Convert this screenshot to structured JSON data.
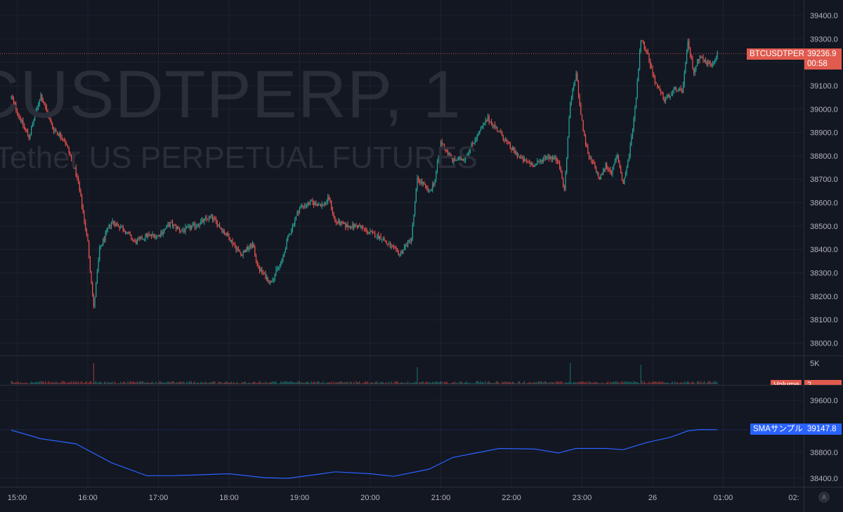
{
  "watermark": {
    "symbol": "CUSDTPERP, 1",
    "description": "Tether US PERPETUAL FUTURES"
  },
  "price_axis": {
    "labels": [
      "39400.0",
      "39300.0",
      "39200.0",
      "39100.0",
      "39000.0",
      "38900.0",
      "38800.0",
      "38700.0",
      "38600.0",
      "38500.0",
      "38400.0",
      "38300.0",
      "38200.0",
      "38100.0",
      "38000.0"
    ]
  },
  "volume_axis": {
    "label": "5K"
  },
  "sma_axis": {
    "labels": [
      "39600.0",
      "38800.0",
      "38400.0"
    ]
  },
  "time_axis": {
    "labels": [
      "15:00",
      "16:00",
      "17:00",
      "18:00",
      "19:00",
      "20:00",
      "21:00",
      "22:00",
      "23:00",
      "26",
      "01:00",
      "02:"
    ]
  },
  "last_price": {
    "symbol_tag": "BTCUSDTPERP",
    "value": "39236.9",
    "countdown": "00:58",
    "color": "#e05a4e"
  },
  "volume_tag": {
    "label": "Volume",
    "value": "2"
  },
  "sma_tag": {
    "label": "SMAサンプル",
    "value": "39147.8",
    "color": "#2962ff"
  },
  "auto_button": {
    "label": "A"
  },
  "colors": {
    "up": "#26a69a",
    "down": "#ef5350",
    "sma_line": "#2962ff",
    "background": "#131722",
    "grid": "#1e222d"
  },
  "chart_data": {
    "type": "candlestick",
    "symbol": "BTCUSDTPERP",
    "interval": "1",
    "price_range": [
      37950,
      39430
    ],
    "sma_range": [
      38350,
      39700
    ],
    "price_path": [
      [
        "14:55",
        39050
      ],
      [
        "15:05",
        38930
      ],
      [
        "15:10",
        38880
      ],
      [
        "15:20",
        39060
      ],
      [
        "15:30",
        38920
      ],
      [
        "15:40",
        38870
      ],
      [
        "15:48",
        38760
      ],
      [
        "15:52",
        38680
      ],
      [
        "16:00",
        38430
      ],
      [
        "16:05",
        38150
      ],
      [
        "16:10",
        38400
      ],
      [
        "16:20",
        38520
      ],
      [
        "16:30",
        38490
      ],
      [
        "16:40",
        38430
      ],
      [
        "16:50",
        38460
      ],
      [
        "17:00",
        38460
      ],
      [
        "17:10",
        38510
      ],
      [
        "17:20",
        38480
      ],
      [
        "17:30",
        38500
      ],
      [
        "17:45",
        38540
      ],
      [
        "17:55",
        38480
      ],
      [
        "18:00",
        38450
      ],
      [
        "18:10",
        38380
      ],
      [
        "18:20",
        38420
      ],
      [
        "18:25",
        38320
      ],
      [
        "18:35",
        38260
      ],
      [
        "18:45",
        38350
      ],
      [
        "18:50",
        38450
      ],
      [
        "19:00",
        38580
      ],
      [
        "19:10",
        38600
      ],
      [
        "19:20",
        38590
      ],
      [
        "19:25",
        38620
      ],
      [
        "19:30",
        38520
      ],
      [
        "19:40",
        38500
      ],
      [
        "19:50",
        38500
      ],
      [
        "20:00",
        38470
      ],
      [
        "20:10",
        38450
      ],
      [
        "20:15",
        38420
      ],
      [
        "20:25",
        38380
      ],
      [
        "20:35",
        38450
      ],
      [
        "20:40",
        38700
      ],
      [
        "20:45",
        38680
      ],
      [
        "20:50",
        38640
      ],
      [
        "20:55",
        38700
      ],
      [
        "21:00",
        38860
      ],
      [
        "21:10",
        38780
      ],
      [
        "21:20",
        38790
      ],
      [
        "21:30",
        38880
      ],
      [
        "21:40",
        38960
      ],
      [
        "21:50",
        38900
      ],
      [
        "22:00",
        38830
      ],
      [
        "22:10",
        38780
      ],
      [
        "22:20",
        38760
      ],
      [
        "22:30",
        38800
      ],
      [
        "22:40",
        38780
      ],
      [
        "22:45",
        38650
      ],
      [
        "22:50",
        39030
      ],
      [
        "22:55",
        39150
      ],
      [
        "23:00",
        38940
      ],
      [
        "23:05",
        38800
      ],
      [
        "23:10",
        38760
      ],
      [
        "23:15",
        38700
      ],
      [
        "23:20",
        38760
      ],
      [
        "23:25",
        38730
      ],
      [
        "23:30",
        38800
      ],
      [
        "23:35",
        38680
      ],
      [
        "23:40",
        38800
      ],
      [
        "23:45",
        39000
      ],
      [
        "23:50",
        39300
      ],
      [
        "23:55",
        39250
      ],
      [
        "00:00",
        39150
      ],
      [
        "00:05",
        39080
      ],
      [
        "00:10",
        39040
      ],
      [
        "00:15",
        39060
      ],
      [
        "00:20",
        39090
      ],
      [
        "00:25",
        39070
      ],
      [
        "00:30",
        39280
      ],
      [
        "00:35",
        39160
      ],
      [
        "00:40",
        39230
      ],
      [
        "00:45",
        39200
      ],
      [
        "00:50",
        39190
      ],
      [
        "00:55",
        39237
      ]
    ],
    "volume_spikes": [
      [
        "16:05",
        5000
      ],
      [
        "20:40",
        4000
      ],
      [
        "22:50",
        5000
      ],
      [
        "23:50",
        4600
      ]
    ],
    "sma_path": [
      [
        "14:55",
        39140
      ],
      [
        "15:20",
        39010
      ],
      [
        "15:50",
        38930
      ],
      [
        "16:20",
        38640
      ],
      [
        "16:50",
        38440
      ],
      [
        "17:10",
        38440
      ],
      [
        "17:30",
        38450
      ],
      [
        "18:00",
        38470
      ],
      [
        "18:30",
        38410
      ],
      [
        "18:50",
        38400
      ],
      [
        "19:15",
        38460
      ],
      [
        "19:30",
        38500
      ],
      [
        "20:00",
        38470
      ],
      [
        "20:20",
        38430
      ],
      [
        "20:50",
        38540
      ],
      [
        "21:10",
        38720
      ],
      [
        "21:30",
        38790
      ],
      [
        "21:50",
        38860
      ],
      [
        "22:20",
        38850
      ],
      [
        "22:40",
        38790
      ],
      [
        "22:55",
        38860
      ],
      [
        "23:20",
        38860
      ],
      [
        "23:35",
        38840
      ],
      [
        "23:55",
        38950
      ],
      [
        "00:15",
        39030
      ],
      [
        "00:30",
        39130
      ],
      [
        "00:40",
        39150
      ],
      [
        "00:55",
        39148
      ]
    ]
  }
}
